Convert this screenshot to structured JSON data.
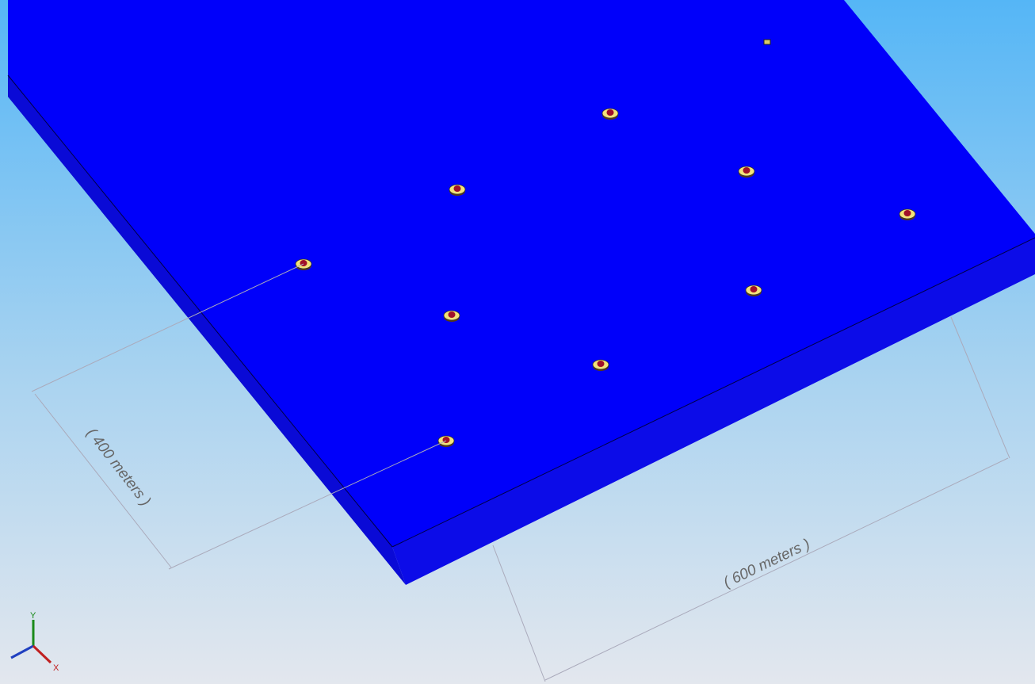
{
  "dimensions": [
    {
      "label": "( 400 meters )"
    },
    {
      "label": "( 600 meters )"
    }
  ],
  "triad": {
    "y_label": "Y",
    "x_label": "X"
  }
}
